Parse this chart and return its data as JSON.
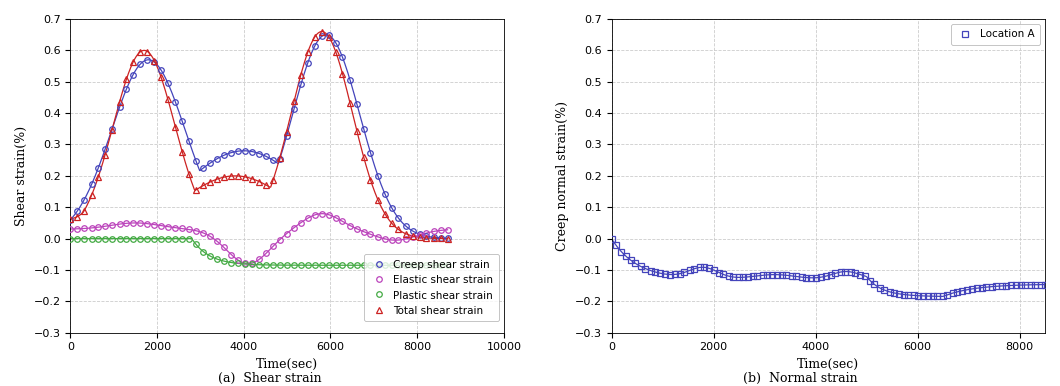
{
  "fig_width": 10.6,
  "fig_height": 3.86,
  "dpi": 100,
  "subplot_a": {
    "title": "(a)  Shear strain",
    "xlabel": "Time(sec)",
    "ylabel": "Shear strain(%)",
    "xlim": [
      0,
      10000
    ],
    "ylim": [
      -0.3,
      0.7
    ],
    "yticks": [
      -0.3,
      -0.2,
      -0.1,
      0.0,
      0.1,
      0.2,
      0.3,
      0.4,
      0.5,
      0.6,
      0.7
    ],
    "xticks": [
      0,
      2000,
      4000,
      6000,
      8000,
      10000
    ],
    "legend_labels": [
      "Creep shear strain",
      "Elastic shear strain",
      "Plastic shear strain",
      "Total shear strain"
    ],
    "legend_colors": [
      "#4444bb",
      "#bb44bb",
      "#44aa44",
      "#cc2222"
    ],
    "legend_markers": [
      "o",
      "o",
      "o",
      "^"
    ]
  },
  "subplot_b": {
    "title": "(b)  Normal strain",
    "xlabel": "Time(sec)",
    "ylabel": "Creep normal strain(%)",
    "xlim": [
      0,
      8500
    ],
    "ylim": [
      -0.3,
      0.7
    ],
    "yticks": [
      -0.3,
      -0.2,
      -0.1,
      0.0,
      0.1,
      0.2,
      0.3,
      0.4,
      0.5,
      0.6,
      0.7
    ],
    "xticks": [
      0,
      2000,
      4000,
      6000,
      8000
    ],
    "legend_labels": [
      "Location A"
    ],
    "legend_colors": [
      "#4444bb"
    ],
    "legend_markers": [
      "s"
    ]
  },
  "background_color": "#ffffff",
  "grid_color": "#cccccc",
  "grid_linestyle": "--",
  "grid_linewidth": 0.6
}
